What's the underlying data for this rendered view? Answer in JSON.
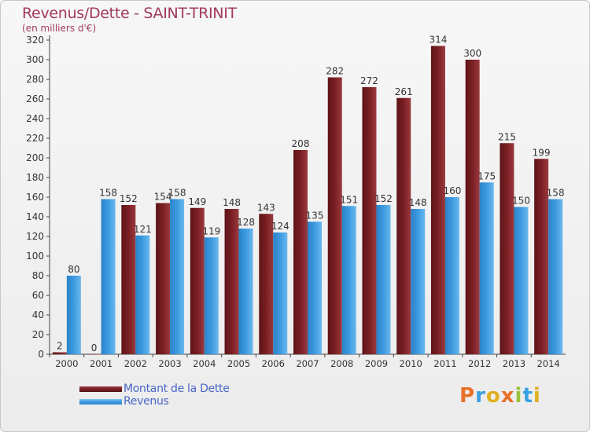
{
  "title": "Revenus/Dette - SAINT-TRINIT",
  "subtitle": "(en milliers d'€)",
  "logo": {
    "text": "Proxiti",
    "colors": [
      "#e8712a",
      "#3aa0e0",
      "#e0b020",
      "#e8712a",
      "#9ac23a",
      "#3aa0e0",
      "#e0b020"
    ]
  },
  "colors": {
    "dette": "#7a1f24",
    "revenus": "#3d9be0",
    "axis": "#333333",
    "title": "#a23a5c"
  },
  "chart_data": {
    "type": "bar",
    "categories": [
      "2000",
      "2001",
      "2002",
      "2003",
      "2004",
      "2005",
      "2006",
      "2007",
      "2008",
      "2009",
      "2010",
      "2011",
      "2012",
      "2013",
      "2014"
    ],
    "series": [
      {
        "name": "Montant de la Dette",
        "values": [
          2,
          0,
          152,
          154,
          149,
          148,
          143,
          208,
          282,
          272,
          261,
          314,
          300,
          215,
          199
        ]
      },
      {
        "name": "Revenus",
        "values": [
          80,
          158,
          121,
          158,
          119,
          128,
          124,
          135,
          151,
          152,
          148,
          160,
          175,
          150,
          158
        ]
      }
    ],
    "ylim": [
      0,
      320
    ],
    "yticks": [
      0,
      20,
      40,
      60,
      80,
      100,
      120,
      140,
      160,
      180,
      200,
      220,
      240,
      260,
      280,
      300,
      320
    ],
    "grid": false,
    "legend_position": "bottom-left"
  }
}
